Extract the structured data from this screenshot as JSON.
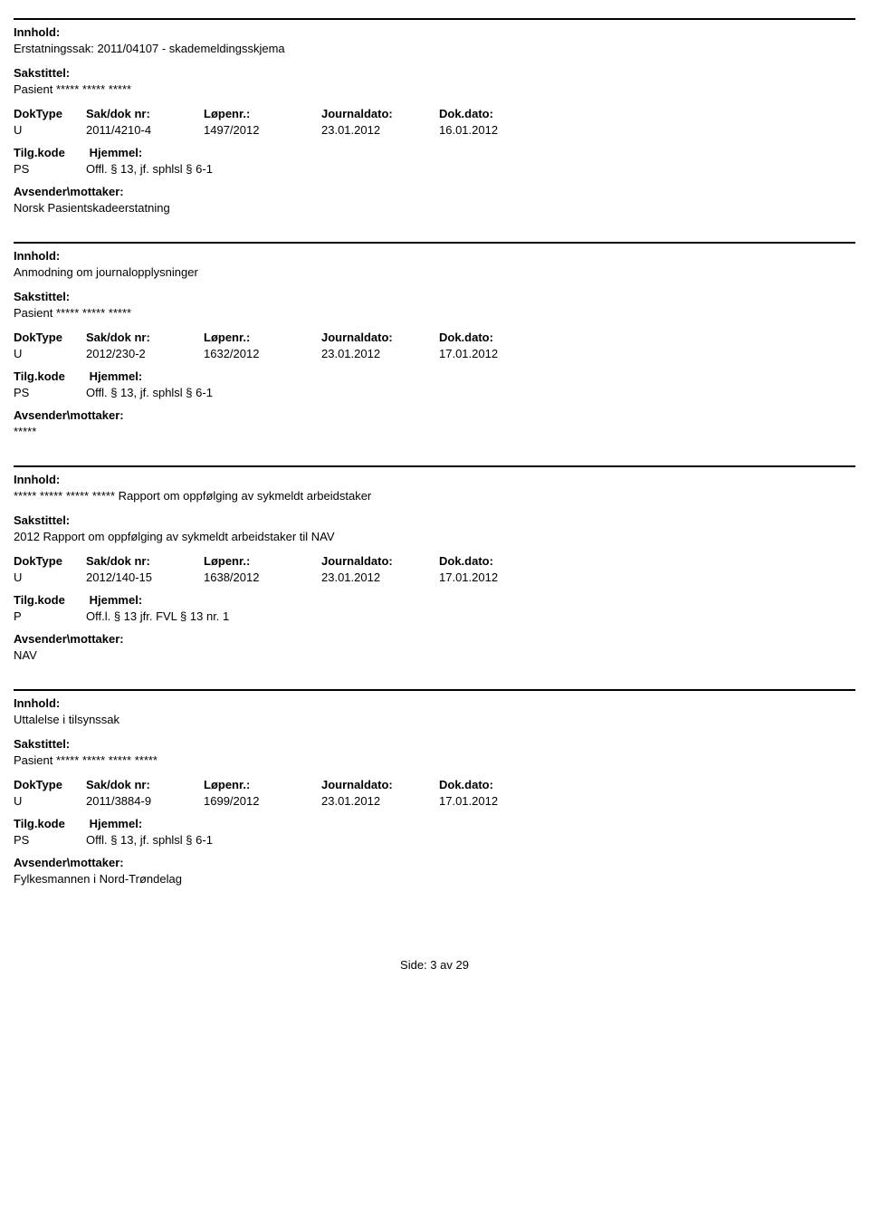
{
  "labels": {
    "innhold": "Innhold:",
    "sakstittel": "Sakstittel:",
    "doktype": "DokType",
    "sakdoknr": "Sak/dok nr:",
    "lopenr": "Løpenr.:",
    "journaldato": "Journaldato:",
    "dokdato": "Dok.dato:",
    "tilgkode": "Tilg.kode",
    "hjemmel": "Hjemmel:",
    "avsender": "Avsender\\mottaker:"
  },
  "entries": [
    {
      "innhold": "Erstatningssak: 2011/04107 - skademeldingsskjema",
      "sakstittel": "Pasient ***** ***** *****",
      "doktype": "U",
      "sakdoknr": "2011/4210-4",
      "lopenr": "1497/2012",
      "journaldato": "23.01.2012",
      "dokdato": "16.01.2012",
      "tilgkode": "PS",
      "hjemmel": "Offl. § 13, jf. sphlsl § 6-1",
      "avsender": "Norsk Pasientskadeerstatning"
    },
    {
      "innhold": "Anmodning om journalopplysninger",
      "sakstittel": "Pasient ***** ***** *****",
      "doktype": "U",
      "sakdoknr": "2012/230-2",
      "lopenr": "1632/2012",
      "journaldato": "23.01.2012",
      "dokdato": "17.01.2012",
      "tilgkode": "PS",
      "hjemmel": "Offl. § 13, jf. sphlsl § 6-1",
      "avsender": "*****"
    },
    {
      "innhold": "***** ***** ***** ***** Rapport om oppfølging av sykmeldt arbeidstaker",
      "sakstittel": "2012  Rapport om oppfølging av sykmeldt arbeidstaker til NAV",
      "doktype": "U",
      "sakdoknr": "2012/140-15",
      "lopenr": "1638/2012",
      "journaldato": "23.01.2012",
      "dokdato": "17.01.2012",
      "tilgkode": "P",
      "hjemmel": "Off.l. § 13 jfr. FVL § 13 nr. 1",
      "avsender": "NAV"
    },
    {
      "innhold": "Uttalelse i tilsynssak",
      "sakstittel": "Pasient ***** ***** ***** *****",
      "doktype": "U",
      "sakdoknr": "2011/3884-9",
      "lopenr": "1699/2012",
      "journaldato": "23.01.2012",
      "dokdato": "17.01.2012",
      "tilgkode": "PS",
      "hjemmel": "Offl. § 13, jf. sphlsl § 6-1",
      "avsender": "Fylkesmannen i Nord-Trøndelag"
    }
  ],
  "footer": "Side: 3 av 29"
}
